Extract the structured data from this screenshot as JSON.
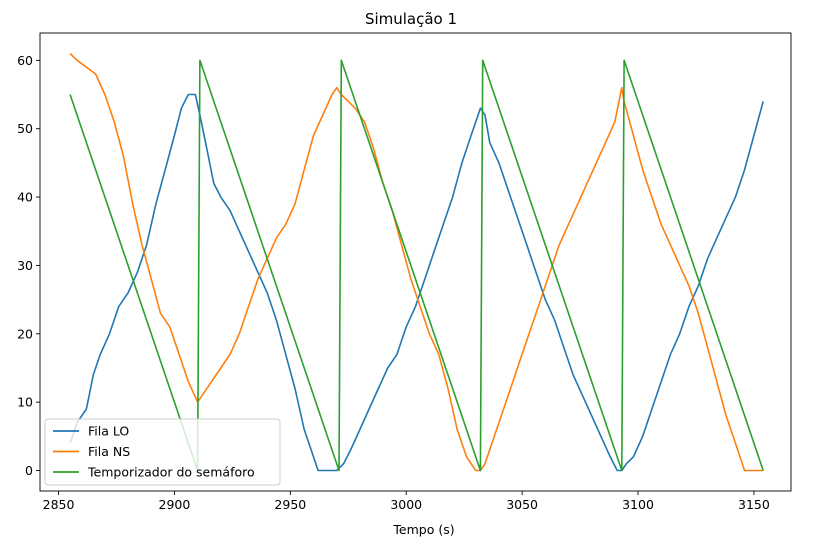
{
  "chart_data": {
    "type": "line",
    "title": "Simulação 1",
    "xlabel": "Tempo (s)",
    "ylabel": "",
    "xlim": [
      2842,
      3166
    ],
    "ylim": [
      -3,
      64
    ],
    "xticks": [
      2850,
      2900,
      2950,
      3000,
      3050,
      3100,
      3150
    ],
    "yticks": [
      0,
      10,
      20,
      30,
      40,
      50,
      60
    ],
    "grid": false,
    "legend_position": "lower left",
    "series": [
      {
        "name": "Fila LO",
        "color": "#1f77b4",
        "x": [
          2855,
          2858,
          2862,
          2865,
          2868,
          2872,
          2876,
          2880,
          2884,
          2888,
          2892,
          2896,
          2900,
          2903,
          2906,
          2909,
          2911,
          2914,
          2917,
          2920,
          2924,
          2928,
          2932,
          2936,
          2940,
          2944,
          2948,
          2952,
          2956,
          2959,
          2962,
          2966,
          2970,
          2973,
          2976,
          2980,
          2984,
          2988,
          2992,
          2996,
          3000,
          3004,
          3008,
          3012,
          3016,
          3020,
          3024,
          3028,
          3032,
          3034,
          3036,
          3040,
          3044,
          3048,
          3052,
          3056,
          3060,
          3064,
          3068,
          3072,
          3076,
          3080,
          3084,
          3088,
          3091,
          3093,
          3095,
          3098,
          3102,
          3106,
          3110,
          3114,
          3118,
          3122,
          3126,
          3130,
          3134,
          3138,
          3142,
          3146,
          3150,
          3154
        ],
        "y": [
          4,
          7,
          9,
          14,
          17,
          20,
          24,
          26,
          29,
          33,
          39,
          44,
          49,
          53,
          55,
          55,
          52,
          47,
          42,
          40,
          38,
          35,
          32,
          29,
          26,
          22,
          17,
          12,
          6,
          3,
          0,
          0,
          0,
          1,
          3,
          6,
          9,
          12,
          15,
          17,
          21,
          24,
          28,
          32,
          36,
          40,
          45,
          49,
          53,
          52,
          48,
          45,
          41,
          37,
          33,
          29,
          25,
          22,
          18,
          14,
          11,
          8,
          5,
          2,
          0,
          0,
          1,
          2,
          5,
          9,
          13,
          17,
          20,
          24,
          27,
          31,
          34,
          37,
          40,
          44,
          49,
          54
        ]
      },
      {
        "name": "Fila NS",
        "color": "#ff7f0e",
        "x": [
          2855,
          2858,
          2862,
          2866,
          2870,
          2874,
          2878,
          2882,
          2886,
          2890,
          2894,
          2898,
          2902,
          2906,
          2910,
          2912,
          2916,
          2920,
          2924,
          2928,
          2932,
          2936,
          2940,
          2944,
          2948,
          2952,
          2956,
          2960,
          2964,
          2968,
          2970,
          2972,
          2975,
          2978,
          2982,
          2986,
          2990,
          2994,
          2998,
          3002,
          3006,
          3010,
          3014,
          3018,
          3022,
          3026,
          3030,
          3032,
          3034,
          3038,
          3042,
          3046,
          3050,
          3054,
          3058,
          3062,
          3066,
          3070,
          3074,
          3078,
          3082,
          3086,
          3090,
          3093,
          3094,
          3098,
          3102,
          3106,
          3110,
          3114,
          3118,
          3122,
          3126,
          3130,
          3134,
          3138,
          3142,
          3146,
          3150,
          3154
        ],
        "y": [
          61,
          60,
          59,
          58,
          55,
          51,
          46,
          39,
          33,
          28,
          23,
          21,
          17,
          13,
          10,
          11,
          13,
          15,
          17,
          20,
          24,
          28,
          31,
          34,
          36,
          39,
          44,
          49,
          52,
          55,
          56,
          55,
          54,
          53,
          51,
          47,
          42,
          38,
          33,
          28,
          24,
          20,
          17,
          12,
          6,
          2,
          0,
          0,
          1,
          5,
          9,
          13,
          17,
          21,
          25,
          29,
          33,
          36,
          39,
          42,
          45,
          48,
          51,
          56,
          54,
          49,
          44,
          40,
          36,
          33,
          30,
          27,
          23,
          18,
          13,
          8,
          4,
          0,
          0,
          0
        ]
      },
      {
        "name": "Temporizador do semáforo",
        "color": "#2ca02c",
        "x": [
          2855,
          2910,
          2911,
          2971,
          2972,
          3032,
          3033,
          3093,
          3094,
          3154
        ],
        "y": [
          55,
          0,
          60,
          0,
          60,
          0,
          60,
          0,
          60,
          0
        ]
      }
    ]
  }
}
